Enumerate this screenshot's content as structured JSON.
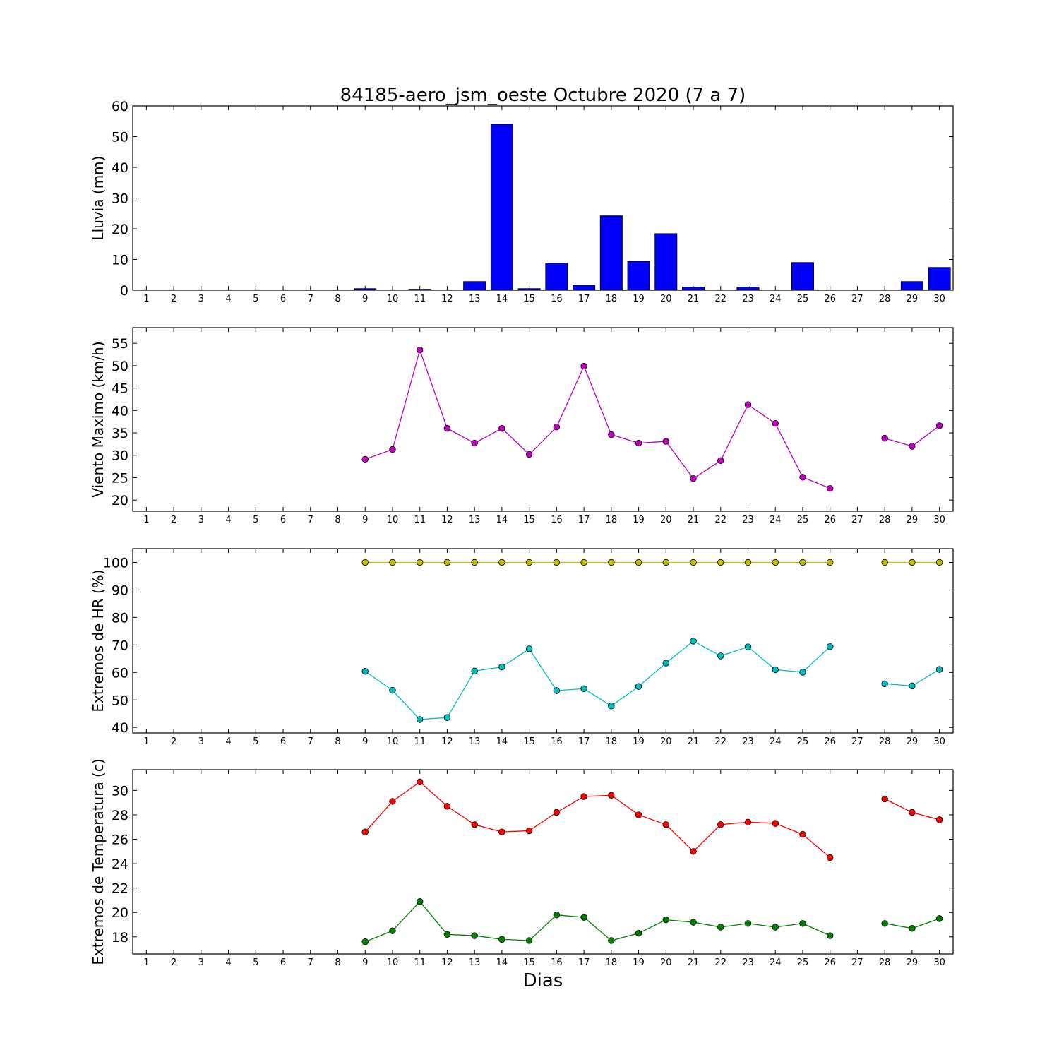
{
  "chart_data": {
    "title": "84185-aero_jsm_oeste Octubre 2020  (7 a 7)",
    "xlabel": "Dias",
    "days": [
      1,
      2,
      3,
      4,
      5,
      6,
      7,
      8,
      9,
      10,
      11,
      12,
      13,
      14,
      15,
      16,
      17,
      18,
      19,
      20,
      21,
      22,
      23,
      24,
      25,
      26,
      27,
      28,
      29,
      30
    ],
    "panels": [
      {
        "type": "bar",
        "ylabel": "Lluvia (mm)",
        "ylim": [
          0,
          60
        ],
        "yticks": [
          0,
          10,
          20,
          30,
          40,
          50,
          60
        ],
        "series": [
          {
            "color": "#0000ff",
            "values": [
              0,
              0,
              0,
              0,
              0,
              0,
              0,
              0,
              0.5,
              0,
              0.3,
              0,
              2.8,
              54,
              0.5,
              8.8,
              1.6,
              24.2,
              9.4,
              18.4,
              1,
              0,
              1,
              0,
              9,
              0,
              0,
              0,
              2.8,
              7.4
            ]
          }
        ]
      },
      {
        "type": "line",
        "ylabel": "Viento Maximo (km/h)",
        "ylim": [
          17.5,
          58.5
        ],
        "yticks": [
          20,
          25,
          30,
          35,
          40,
          45,
          50,
          55
        ],
        "series": [
          {
            "color": "#bf00bf",
            "values": [
              null,
              null,
              null,
              null,
              null,
              null,
              null,
              null,
              29.1,
              31.3,
              53.5,
              36,
              32.7,
              36,
              30.2,
              36.3,
              49.9,
              34.6,
              32.7,
              33.1,
              24.8,
              28.8,
              41.3,
              37.1,
              25.1,
              22.6,
              null,
              33.8,
              32,
              36.6
            ]
          }
        ]
      },
      {
        "type": "line",
        "ylabel": "Extremos de HR (%)",
        "ylim": [
          38,
          105
        ],
        "yticks": [
          40,
          50,
          60,
          70,
          80,
          90,
          100
        ],
        "series": [
          {
            "color": "#bfbf00",
            "values": [
              null,
              null,
              null,
              null,
              null,
              null,
              null,
              null,
              100,
              100,
              100,
              100,
              100,
              100,
              100,
              100,
              100,
              100,
              100,
              100,
              100,
              100,
              100,
              100,
              100,
              100,
              null,
              100,
              100,
              100
            ]
          },
          {
            "color": "#00bfbf",
            "values": [
              null,
              null,
              null,
              null,
              null,
              null,
              null,
              null,
              60.4,
              53.5,
              42.9,
              43.6,
              60.5,
              62,
              68.6,
              53.4,
              54.1,
              47.8,
              54.9,
              63.4,
              71.4,
              66,
              69.3,
              61,
              60.1,
              69.4,
              null,
              55.9,
              55.1,
              61.1
            ]
          }
        ]
      },
      {
        "type": "line",
        "ylabel": "Extremos de Temperatura (c)",
        "ylim": [
          16.6,
          31.7
        ],
        "yticks": [
          18,
          20,
          22,
          24,
          26,
          28,
          30
        ],
        "series": [
          {
            "color": "#ff0000",
            "values": [
              null,
              null,
              null,
              null,
              null,
              null,
              null,
              null,
              26.6,
              29.1,
              30.7,
              28.7,
              27.2,
              26.6,
              26.7,
              28.2,
              29.5,
              29.6,
              28,
              27.2,
              25,
              27.2,
              27.4,
              27.3,
              26.4,
              24.5,
              null,
              29.3,
              28.2,
              27.6
            ]
          },
          {
            "color": "#008000",
            "values": [
              null,
              null,
              null,
              null,
              null,
              null,
              null,
              null,
              17.6,
              18.5,
              20.9,
              18.2,
              18.1,
              17.8,
              17.7,
              19.8,
              19.6,
              17.7,
              18.3,
              19.4,
              19.2,
              18.8,
              19.1,
              18.8,
              19.1,
              18.1,
              null,
              19.1,
              18.7,
              19.5
            ]
          }
        ]
      }
    ]
  }
}
